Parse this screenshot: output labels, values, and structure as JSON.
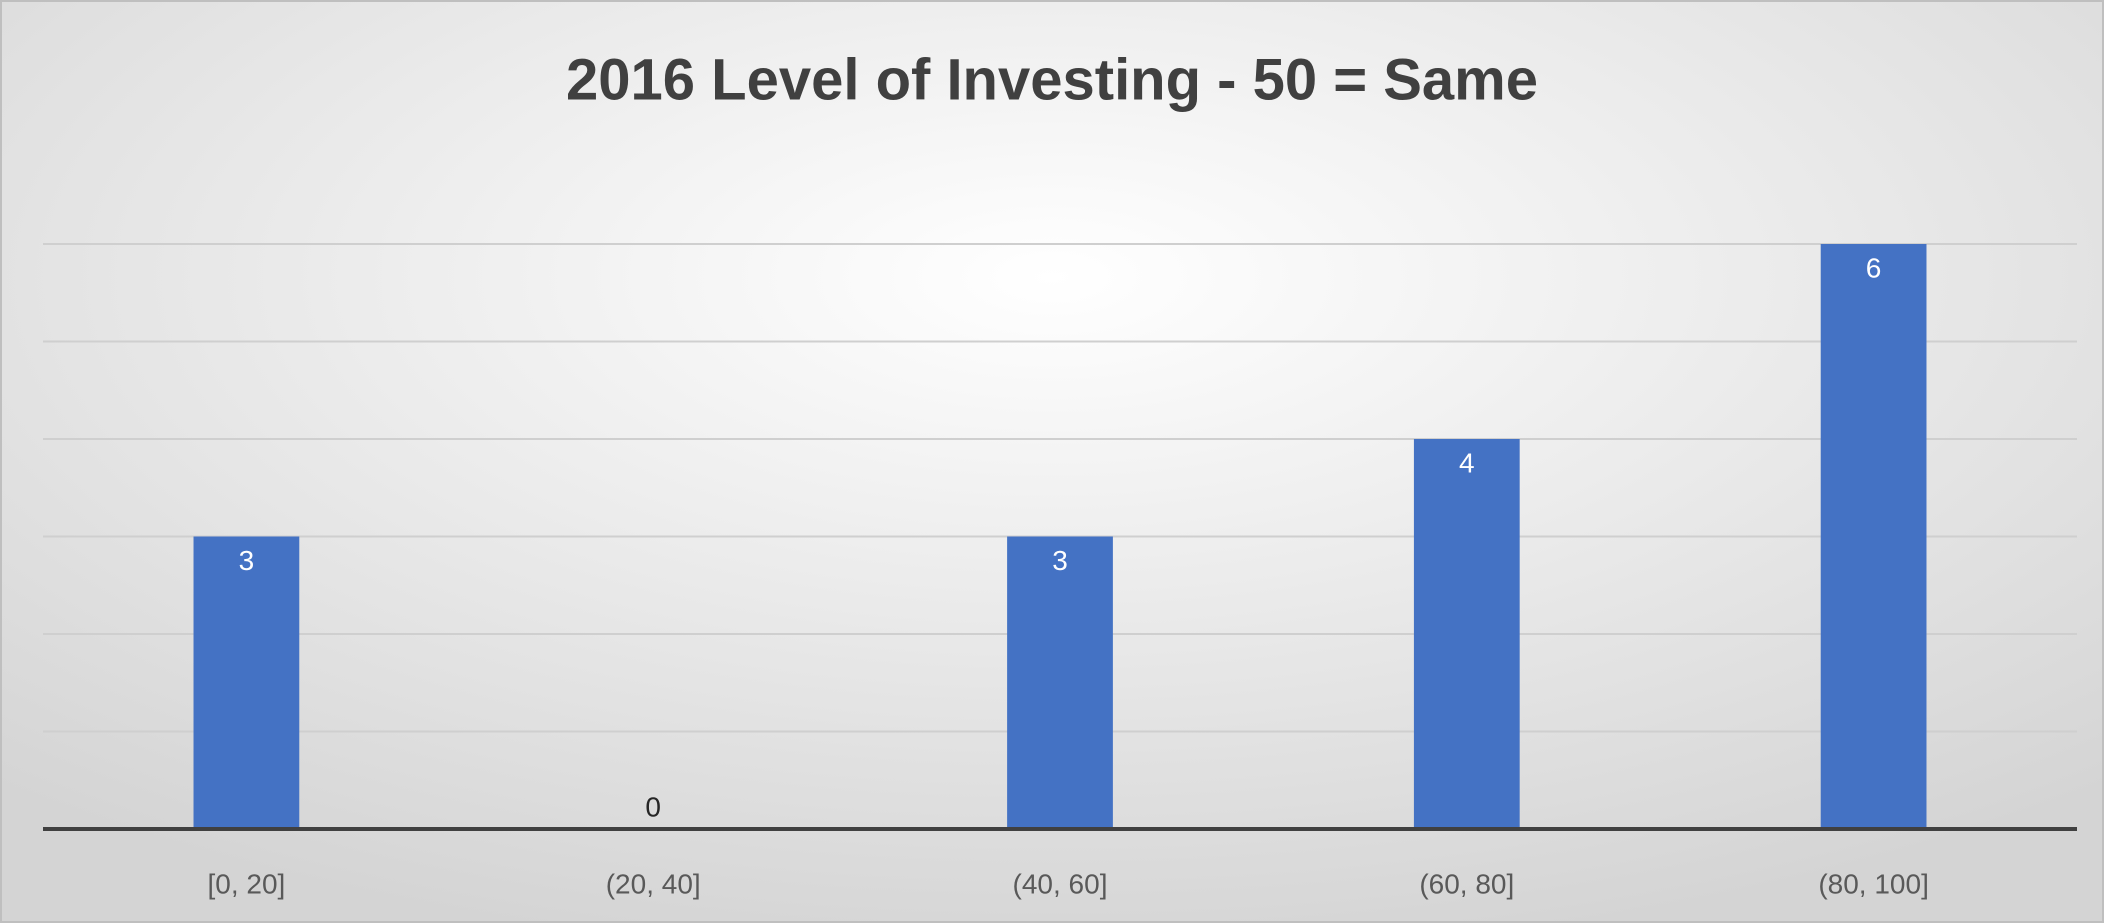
{
  "chart_data": {
    "type": "bar",
    "title": "2016 Level of Investing - 50 = Same",
    "categories": [
      "[0, 20]",
      "(20, 40]",
      "(40, 60]",
      "(60, 80]",
      "(80, 100]"
    ],
    "values": [
      3,
      0,
      3,
      4,
      6
    ],
    "color": "#4472c4",
    "ylim": [
      0,
      6
    ],
    "yticks": [
      0,
      1,
      2,
      3,
      4,
      5,
      6
    ],
    "grid": true
  }
}
